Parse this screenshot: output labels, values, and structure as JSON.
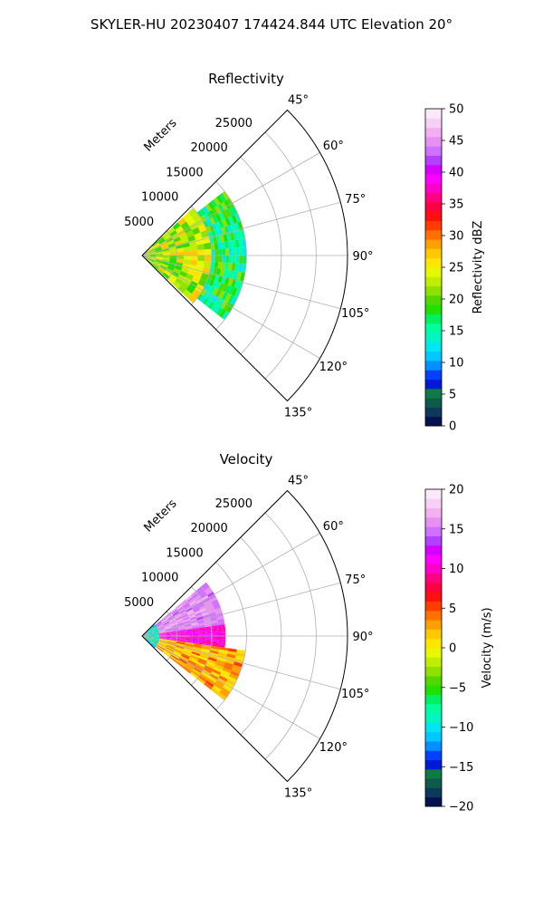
{
  "figure": {
    "suptitle": "SKYLER-HU  20230407  174424.844 UTC Elevation 20°"
  },
  "chart_data": [
    {
      "type": "heatmap",
      "projection": "polar-sector",
      "title": "Reflectivity",
      "radial_label": "Meters",
      "radial_ticks": [
        5000,
        10000,
        15000,
        20000,
        25000
      ],
      "radial_range": [
        0,
        29500
      ],
      "angular_range_deg": [
        45,
        135
      ],
      "angular_ticks": [
        "45°",
        "60°",
        "75°",
        "90°",
        "105°",
        "120°",
        "135°"
      ],
      "grid": true,
      "colorbar": {
        "label": "Reflectivity dBZ",
        "range": [
          0,
          50
        ],
        "ticks": [
          0,
          5,
          10,
          15,
          20,
          25,
          30,
          35,
          40,
          45,
          50
        ],
        "colors": [
          "#06124f",
          "#0d3a5c",
          "#0e5a4c",
          "#0f7a43",
          "#0019d6",
          "#0040ff",
          "#0090ff",
          "#00c8ff",
          "#00e6f0",
          "#00f5c0",
          "#00ffa0",
          "#00f060",
          "#20e000",
          "#50d800",
          "#90e000",
          "#c0ee00",
          "#e8f800",
          "#ffe600",
          "#ffc800",
          "#ffa000",
          "#ff7000",
          "#ff3c00",
          "#ff1010",
          "#ff0040",
          "#ff0080",
          "#ff00c8",
          "#ff00ff",
          "#d600ff",
          "#b440ff",
          "#d070ff",
          "#e890f0",
          "#f2b0f0",
          "#f8d0f6",
          "#fde8fb"
        ]
      },
      "field_regions": [
        {
          "from_range_m": 0,
          "to_range_m": 10000,
          "from_deg": 47,
          "to_deg": 133,
          "values_dbz": [
            18,
            28
          ]
        },
        {
          "from_range_m": 10000,
          "to_range_m": 15000,
          "from_deg": 52,
          "to_deg": 128,
          "values_dbz": [
            12,
            22
          ]
        }
      ]
    },
    {
      "type": "heatmap",
      "projection": "polar-sector",
      "title": "Velocity",
      "radial_label": "Meters",
      "radial_ticks": [
        5000,
        10000,
        15000,
        20000,
        25000
      ],
      "radial_range": [
        0,
        29500
      ],
      "angular_range_deg": [
        45,
        135
      ],
      "angular_ticks": [
        "45°",
        "60°",
        "75°",
        "90°",
        "105°",
        "120°",
        "135°"
      ],
      "grid": true,
      "colorbar": {
        "label": "Velocity (m/s)",
        "range": [
          -20,
          20
        ],
        "ticks": [
          -20,
          -15,
          -10,
          -5,
          0,
          5,
          10,
          15,
          20
        ],
        "colors": [
          "#06124f",
          "#0d3a5c",
          "#0e5a4c",
          "#0f7a43",
          "#0019d6",
          "#0040ff",
          "#0090ff",
          "#00c8ff",
          "#00e6f0",
          "#00f5c0",
          "#00ffa0",
          "#00f060",
          "#20e000",
          "#50d800",
          "#90e000",
          "#c0ee00",
          "#e8f800",
          "#ffe600",
          "#ffc800",
          "#ffa000",
          "#ff7000",
          "#ff3c00",
          "#ff1010",
          "#ff0040",
          "#ff0080",
          "#ff00c8",
          "#ff00ff",
          "#d600ff",
          "#b440ff",
          "#d070ff",
          "#e890f0",
          "#f2b0f0",
          "#f8d0f6",
          "#fde8fb"
        ]
      },
      "field_regions": [
        {
          "from_range_m": 0,
          "to_range_m": 2500,
          "from_deg": 47,
          "to_deg": 133,
          "values_ms": [
            -12,
            -6
          ]
        },
        {
          "from_range_m": 2500,
          "to_range_m": 12000,
          "from_deg": 50,
          "to_deg": 82,
          "values_ms": [
            14,
            17
          ]
        },
        {
          "from_range_m": 2500,
          "to_range_m": 12000,
          "from_deg": 82,
          "to_deg": 98,
          "values_ms": [
            9,
            12
          ]
        },
        {
          "from_range_m": 2500,
          "to_range_m": 15000,
          "from_deg": 98,
          "to_deg": 128,
          "values_ms": [
            0,
            5
          ]
        }
      ]
    }
  ]
}
